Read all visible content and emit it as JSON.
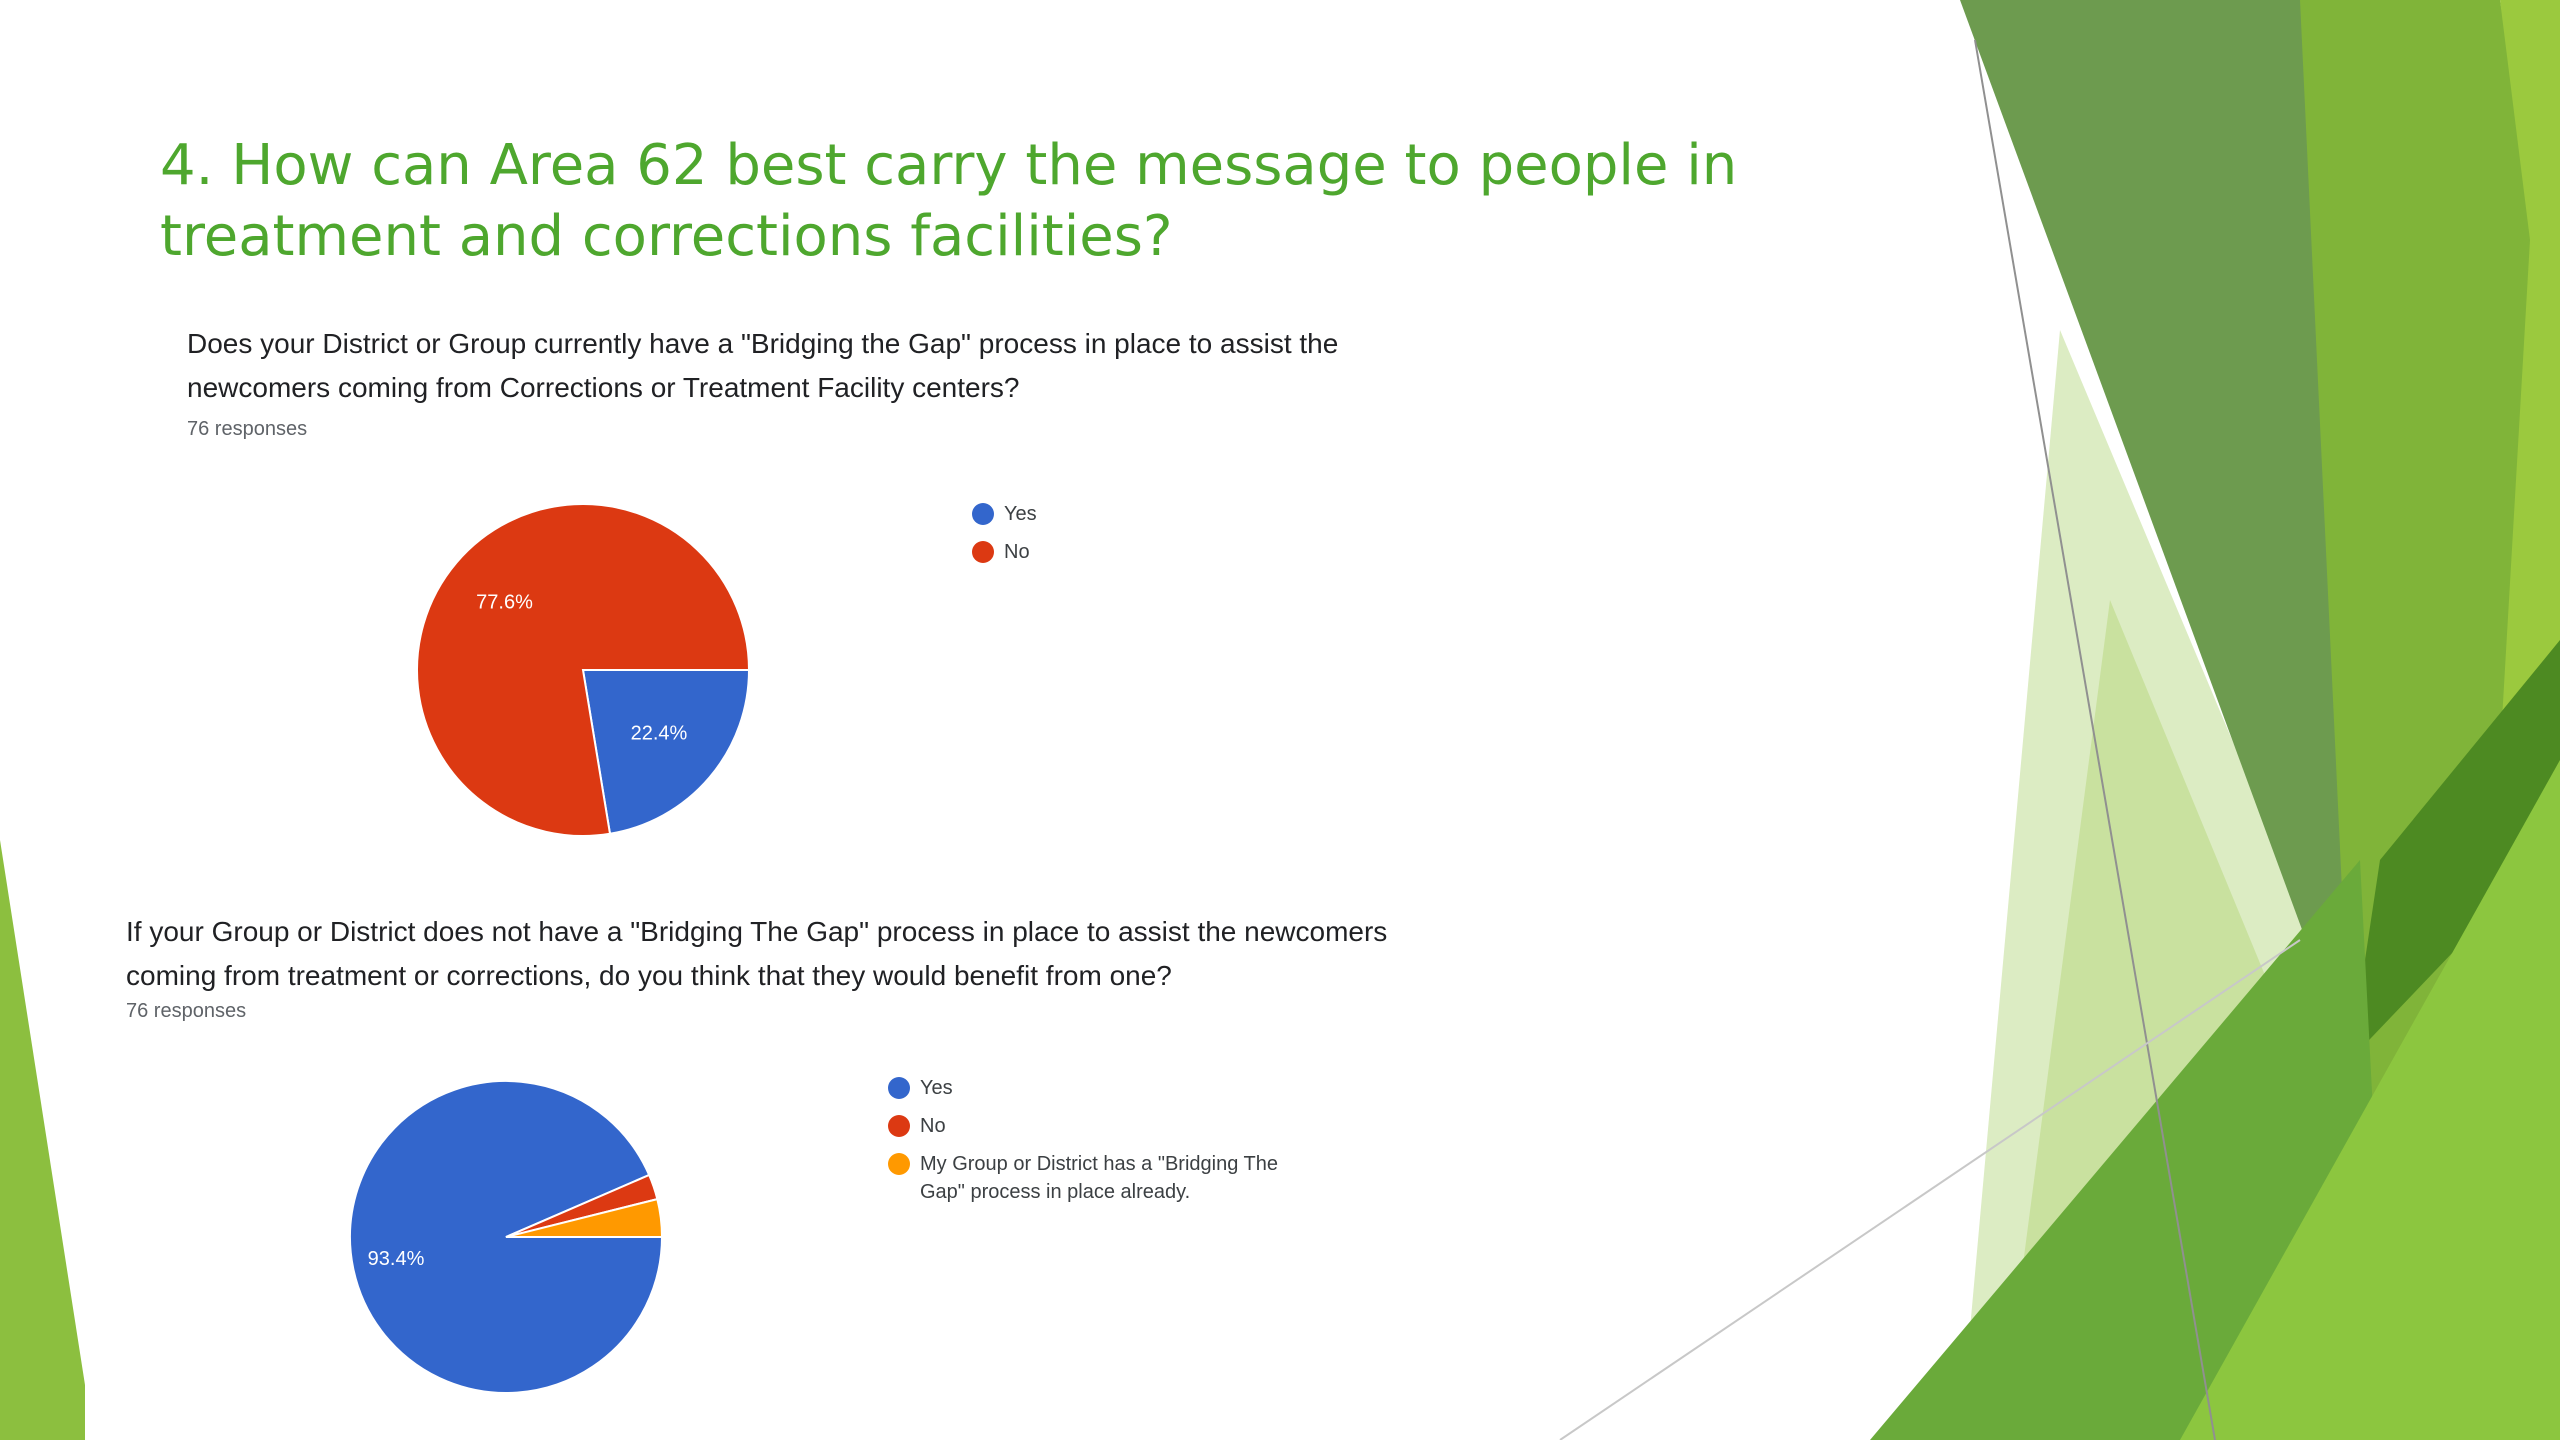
{
  "slide": {
    "title": "4.  How can Area 62 best carry the message to people in treatment and corrections facilities?",
    "theme_colors": {
      "title": "#4ea72e",
      "dark_green": "#6d9b4f",
      "mid_green": "#7fb33a",
      "light_green": "#9bc93e",
      "pale_green": "#dcecc3",
      "deep_green": "#4d8a22"
    }
  },
  "colors": {
    "yes": "#3366cc",
    "no": "#dc3912",
    "already": "#ff9900"
  },
  "chart_data": [
    {
      "type": "pie",
      "title": "Does your District or Group currently have a \"Bridging the Gap\"  process in place to assist the newcomers coming from Corrections or Treatment Facility centers?",
      "subtitle": "76 responses",
      "categories": [
        "Yes",
        "No"
      ],
      "values": [
        22.4,
        77.6
      ],
      "value_labels": [
        "22.4%",
        "77.6%"
      ],
      "colors": [
        "#3366cc",
        "#dc3912"
      ],
      "legend_position": "right"
    },
    {
      "type": "pie",
      "title": "If your Group or District does not have a \"Bridging The Gap\" process in place to assist the newcomers coming from treatment or corrections, do you think that they would benefit from one?",
      "subtitle": "76 responses",
      "categories": [
        "Yes",
        "No",
        "My Group or District has a \"Bridging The Gap\" process in place already."
      ],
      "values": [
        93.4,
        2.6,
        3.9
      ],
      "value_labels": [
        "93.4%",
        "",
        ""
      ],
      "colors": [
        "#3366cc",
        "#dc3912",
        "#ff9900"
      ],
      "legend_position": "right"
    }
  ]
}
